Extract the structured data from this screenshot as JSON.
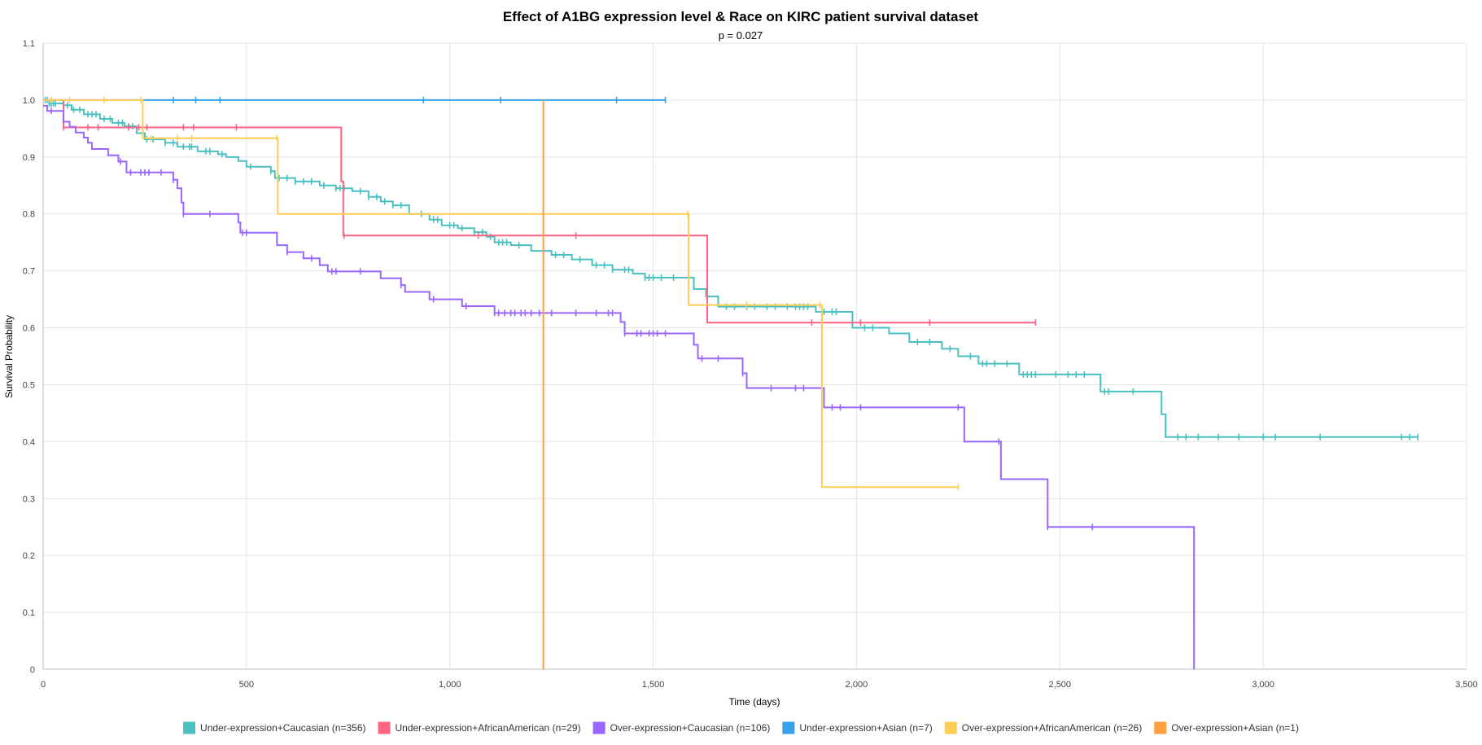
{
  "chart_data": {
    "type": "line",
    "title": "Effect of A1BG expression level & Race on KIRC patient survival dataset",
    "subtitle": "p = 0.027",
    "xlabel": "Time (days)",
    "ylabel": "Survival Probability",
    "xlim": [
      0,
      3500
    ],
    "ylim": [
      0,
      1.1
    ],
    "x_ticks": [
      0,
      500,
      1000,
      1500,
      2000,
      2500,
      3000,
      3500
    ],
    "x_tick_labels": [
      "0",
      "500",
      "1,000",
      "1,500",
      "2,000",
      "2,500",
      "3,000",
      "3,500"
    ],
    "y_ticks": [
      0,
      0.1,
      0.2,
      0.3,
      0.4,
      0.5,
      0.6,
      0.7,
      0.8,
      0.9,
      1.0,
      1.1
    ],
    "y_tick_labels": [
      "0",
      "0.1",
      "0.2",
      "0.3",
      "0.4",
      "0.5",
      "0.6",
      "0.7",
      "0.8",
      "0.9",
      "1.0",
      "1.1"
    ],
    "grid": true,
    "legend_position": "bottom",
    "series": [
      {
        "name": "Under-expression+Caucasian (n=356)",
        "color": "#4bc0c0",
        "steps": [
          [
            0,
            1.0
          ],
          [
            15,
            0.994
          ],
          [
            50,
            0.991
          ],
          [
            70,
            0.983
          ],
          [
            100,
            0.975
          ],
          [
            140,
            0.967
          ],
          [
            170,
            0.96
          ],
          [
            200,
            0.954
          ],
          [
            230,
            0.942
          ],
          [
            250,
            0.931
          ],
          [
            300,
            0.925
          ],
          [
            330,
            0.918
          ],
          [
            380,
            0.91
          ],
          [
            430,
            0.905
          ],
          [
            450,
            0.9
          ],
          [
            480,
            0.893
          ],
          [
            500,
            0.883
          ],
          [
            560,
            0.875
          ],
          [
            570,
            0.863
          ],
          [
            620,
            0.857
          ],
          [
            680,
            0.85
          ],
          [
            720,
            0.845
          ],
          [
            760,
            0.84
          ],
          [
            800,
            0.83
          ],
          [
            830,
            0.822
          ],
          [
            860,
            0.815
          ],
          [
            900,
            0.8
          ],
          [
            950,
            0.79
          ],
          [
            980,
            0.78
          ],
          [
            1020,
            0.775
          ],
          [
            1060,
            0.768
          ],
          [
            1090,
            0.76
          ],
          [
            1110,
            0.75
          ],
          [
            1150,
            0.745
          ],
          [
            1200,
            0.735
          ],
          [
            1250,
            0.728
          ],
          [
            1300,
            0.72
          ],
          [
            1350,
            0.71
          ],
          [
            1400,
            0.702
          ],
          [
            1450,
            0.695
          ],
          [
            1480,
            0.688
          ],
          [
            1600,
            0.668
          ],
          [
            1630,
            0.655
          ],
          [
            1660,
            0.637
          ],
          [
            1900,
            0.628
          ],
          [
            1990,
            0.6
          ],
          [
            2080,
            0.59
          ],
          [
            2130,
            0.575
          ],
          [
            2210,
            0.563
          ],
          [
            2250,
            0.55
          ],
          [
            2300,
            0.537
          ],
          [
            2400,
            0.518
          ],
          [
            2600,
            0.488
          ],
          [
            2750,
            0.448
          ],
          [
            2760,
            0.408
          ],
          [
            3380,
            0.408
          ]
        ],
        "censors": [
          5,
          10,
          15,
          20,
          25,
          30,
          60,
          75,
          90,
          110,
          120,
          130,
          150,
          165,
          185,
          195,
          210,
          220,
          245,
          255,
          270,
          300,
          320,
          345,
          360,
          365,
          400,
          410,
          440,
          510,
          560,
          580,
          600,
          620,
          640,
          660,
          690,
          720,
          730,
          740,
          780,
          800,
          820,
          840,
          860,
          880,
          930,
          960,
          970,
          1000,
          1010,
          1030,
          1060,
          1080,
          1100,
          1120,
          1130,
          1140,
          1170,
          1260,
          1280,
          1320,
          1360,
          1380,
          1400,
          1430,
          1440,
          1480,
          1490,
          1500,
          1520,
          1550,
          1680,
          1700,
          1730,
          1750,
          1780,
          1800,
          1830,
          1850,
          1860,
          1870,
          1880,
          1920,
          1940,
          1950,
          2020,
          2040,
          2150,
          2180,
          2230,
          2280,
          2310,
          2320,
          2340,
          2370,
          2410,
          2420,
          2430,
          2440,
          2490,
          2520,
          2540,
          2560,
          2610,
          2620,
          2680,
          2790,
          2810,
          2840,
          2890,
          2940,
          3000,
          3030,
          3140,
          3340,
          3360,
          3380
        ]
      },
      {
        "name": "Under-expression+AfricanAmerican (n=29)",
        "color": "#ff6384",
        "steps": [
          [
            0,
            1.0
          ],
          [
            40,
            1.0
          ],
          [
            50,
            0.952
          ],
          [
            728,
            0.952
          ],
          [
            733,
            0.857
          ],
          [
            738,
            0.762
          ],
          [
            1628,
            0.762
          ],
          [
            1633,
            0.609
          ],
          [
            2440,
            0.609
          ]
        ],
        "censors": [
          50,
          110,
          135,
          210,
          235,
          255,
          345,
          370,
          475,
          740,
          1070,
          1310,
          1890,
          2010,
          2180,
          2440
        ]
      },
      {
        "name": "Over-expression+Caucasian (n=106)",
        "color": "#9966ff",
        "steps": [
          [
            0,
            0.99
          ],
          [
            10,
            0.981
          ],
          [
            30,
            0.981
          ],
          [
            50,
            0.962
          ],
          [
            65,
            0.953
          ],
          [
            80,
            0.943
          ],
          [
            100,
            0.934
          ],
          [
            110,
            0.925
          ],
          [
            120,
            0.914
          ],
          [
            160,
            0.903
          ],
          [
            185,
            0.892
          ],
          [
            205,
            0.873
          ],
          [
            310,
            0.873
          ],
          [
            320,
            0.86
          ],
          [
            330,
            0.845
          ],
          [
            340,
            0.82
          ],
          [
            345,
            0.8
          ],
          [
            475,
            0.8
          ],
          [
            480,
            0.785
          ],
          [
            485,
            0.767
          ],
          [
            560,
            0.767
          ],
          [
            575,
            0.745
          ],
          [
            600,
            0.733
          ],
          [
            640,
            0.722
          ],
          [
            680,
            0.71
          ],
          [
            700,
            0.699
          ],
          [
            830,
            0.687
          ],
          [
            880,
            0.675
          ],
          [
            890,
            0.663
          ],
          [
            950,
            0.65
          ],
          [
            1030,
            0.638
          ],
          [
            1110,
            0.626
          ],
          [
            1410,
            0.626
          ],
          [
            1420,
            0.61
          ],
          [
            1430,
            0.59
          ],
          [
            1590,
            0.59
          ],
          [
            1600,
            0.57
          ],
          [
            1610,
            0.546
          ],
          [
            1710,
            0.546
          ],
          [
            1720,
            0.52
          ],
          [
            1730,
            0.494
          ],
          [
            1910,
            0.494
          ],
          [
            1920,
            0.46
          ],
          [
            2260,
            0.46
          ],
          [
            2265,
            0.4
          ],
          [
            2350,
            0.4
          ],
          [
            2355,
            0.334
          ],
          [
            2465,
            0.334
          ],
          [
            2470,
            0.25
          ],
          [
            2830,
            0.25
          ],
          [
            2830,
            0.0
          ]
        ],
        "censors": [
          20,
          190,
          215,
          240,
          250,
          260,
          290,
          320,
          345,
          410,
          490,
          500,
          600,
          660,
          710,
          720,
          780,
          880,
          960,
          1040,
          1110,
          1120,
          1135,
          1150,
          1160,
          1175,
          1185,
          1200,
          1220,
          1250,
          1310,
          1360,
          1390,
          1400,
          1430,
          1460,
          1470,
          1490,
          1500,
          1510,
          1530,
          1620,
          1660,
          1720,
          1790,
          1850,
          1870,
          1940,
          1960,
          2010,
          2250,
          2350,
          2470,
          2580
        ]
      },
      {
        "name": "Under-expression+Asian (n=7)",
        "color": "#36a2eb",
        "steps": [
          [
            0,
            1.0
          ],
          [
            1530,
            1.0
          ]
        ],
        "censors": [
          320,
          375,
          435,
          935,
          1125,
          1410,
          1530
        ]
      },
      {
        "name": "Over-expression+AfricanAmerican (n=26)",
        "color": "#ffcd56",
        "steps": [
          [
            0,
            1.0
          ],
          [
            240,
            1.0
          ],
          [
            245,
            0.933
          ],
          [
            572,
            0.933
          ],
          [
            577,
            0.8
          ],
          [
            1582,
            0.8
          ],
          [
            1587,
            0.64
          ],
          [
            1910,
            0.64
          ],
          [
            1915,
            0.32
          ],
          [
            2250,
            0.32
          ]
        ],
        "censors": [
          20,
          65,
          150,
          240,
          265,
          330,
          365,
          575,
          1585,
          1730,
          1910,
          2250
        ]
      },
      {
        "name": "Over-expression+Asian (n=1)",
        "color": "#ff9f40",
        "steps": [
          [
            1230,
            1.0
          ],
          [
            1230,
            0.0
          ]
        ],
        "censors": []
      }
    ]
  }
}
